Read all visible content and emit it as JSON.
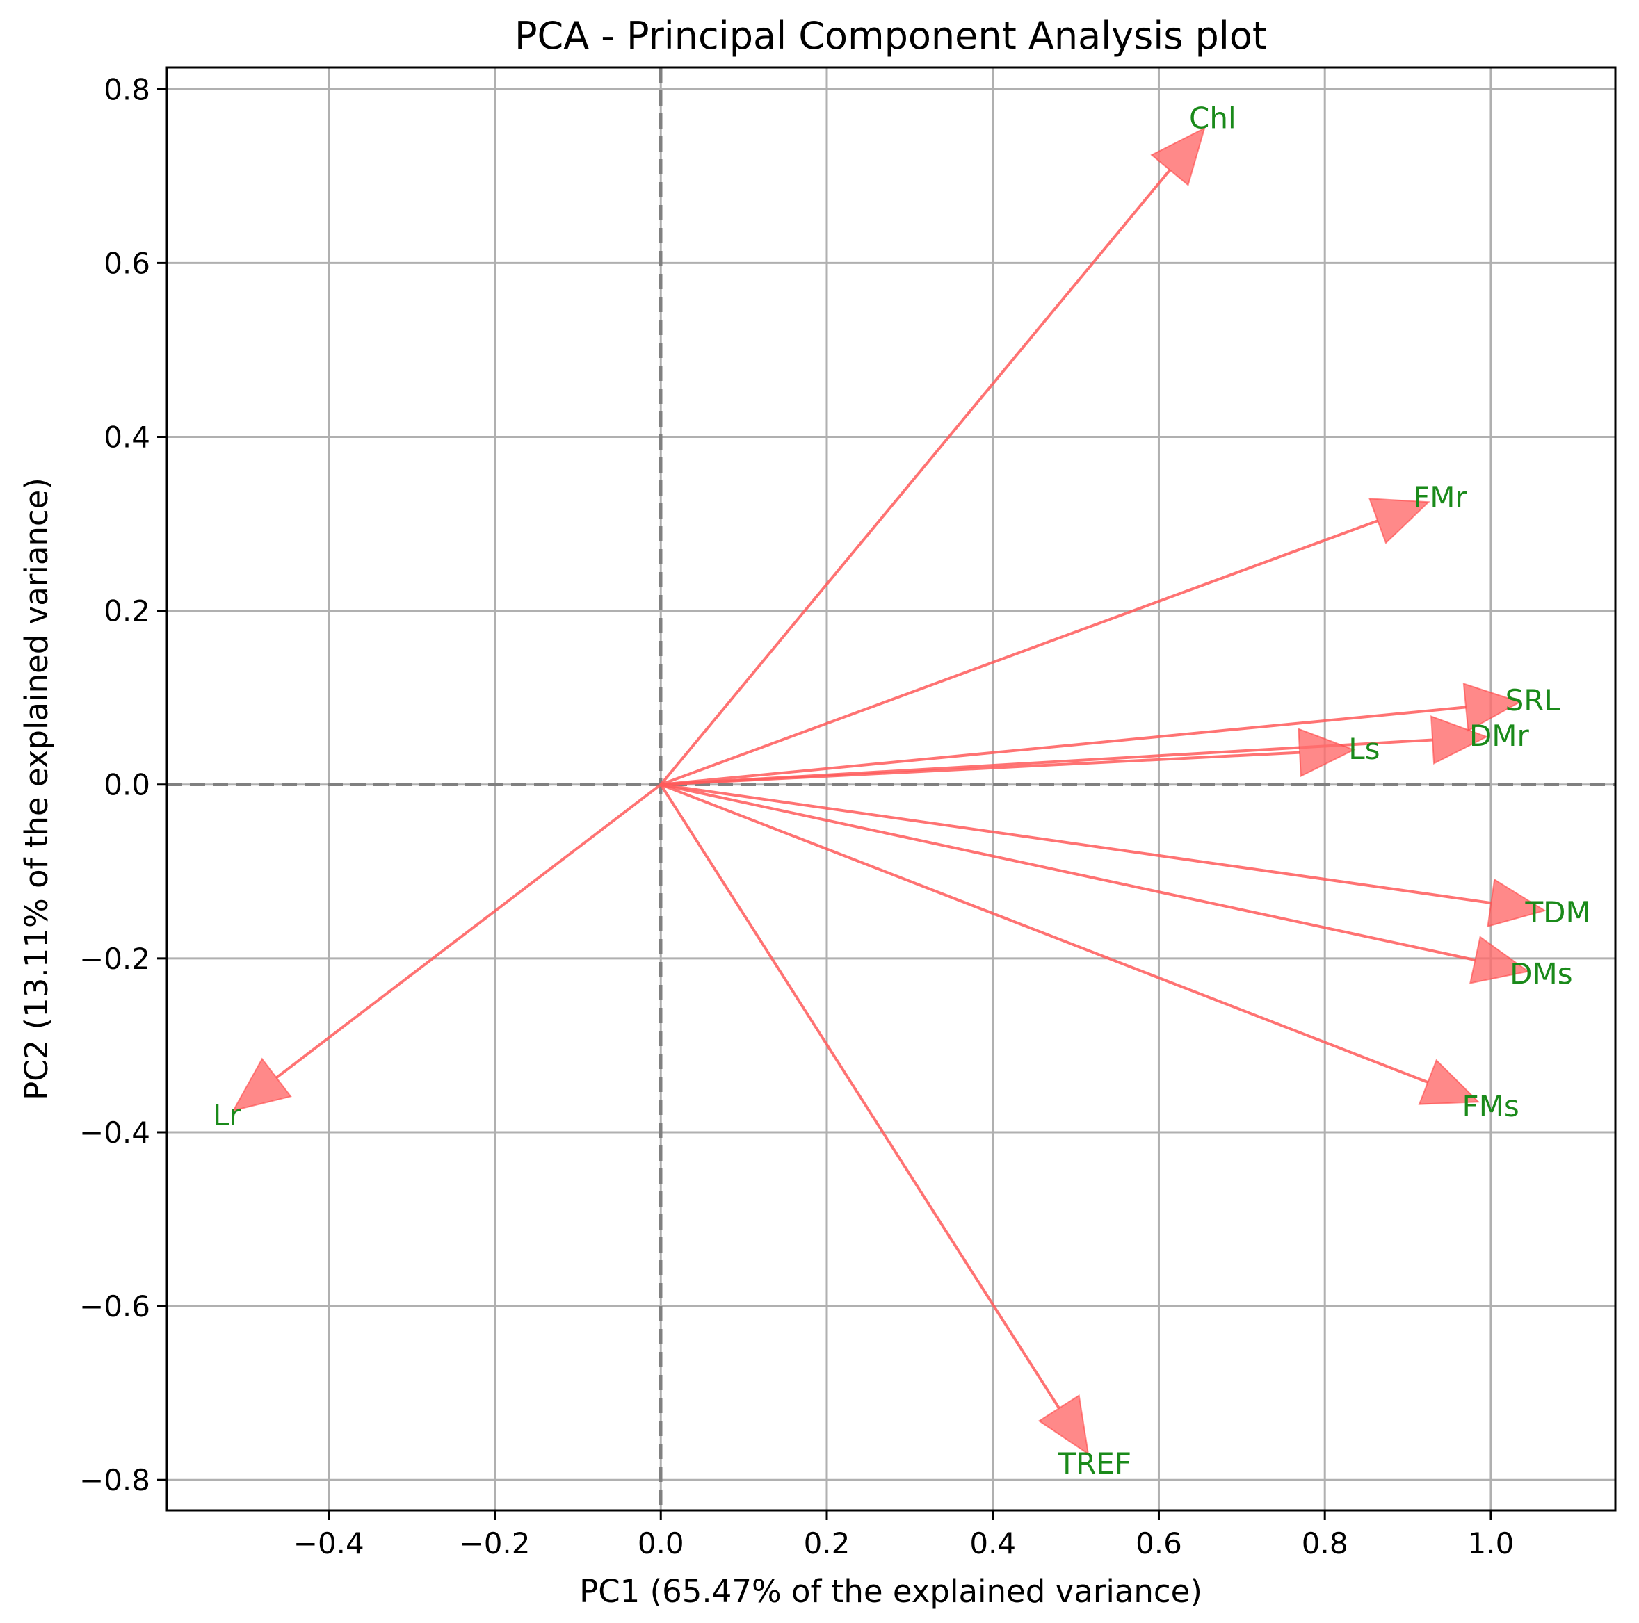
{
  "chart_data": {
    "type": "biplot",
    "title": "PCA - Principal Component Analysis plot",
    "xlabel": "PC1 (65.47% of the explained variance)",
    "ylabel": "PC2 (13.11% of the explained variance)",
    "xlim": [
      -0.595,
      1.15
    ],
    "ylim": [
      -0.835,
      0.825
    ],
    "xticks": [
      -0.4,
      -0.2,
      0.0,
      0.2,
      0.4,
      0.6,
      0.8,
      1.0
    ],
    "xtick_labels": [
      "−0.4",
      "−0.2",
      "0.0",
      "0.2",
      "0.4",
      "0.6",
      "0.8",
      "1.0"
    ],
    "yticks": [
      0.8,
      0.6,
      0.4,
      0.2,
      0.0,
      -0.2,
      -0.4,
      -0.6,
      -0.8
    ],
    "ytick_labels": [
      "0.8",
      "0.6",
      "0.4",
      "0.2",
      "0.0",
      "−0.2",
      "−0.4",
      "−0.6",
      "−0.8"
    ],
    "grid": true,
    "zero_lines": true,
    "arrow_color": "#ff6b6b",
    "label_color": "#1a8a1a",
    "loadings": [
      {
        "name": "Chl",
        "x": 0.655,
        "y": 0.755
      },
      {
        "name": "FMr",
        "x": 0.925,
        "y": 0.325
      },
      {
        "name": "SRL",
        "x": 1.035,
        "y": 0.095
      },
      {
        "name": "DMr",
        "x": 0.995,
        "y": 0.055
      },
      {
        "name": "Ls",
        "x": 0.835,
        "y": 0.04
      },
      {
        "name": "TDM",
        "x": 1.065,
        "y": -0.145
      },
      {
        "name": "DMs",
        "x": 1.045,
        "y": -0.215
      },
      {
        "name": "FMs",
        "x": 0.985,
        "y": -0.365
      },
      {
        "name": "TREF",
        "x": 0.515,
        "y": -0.77
      },
      {
        "name": "Lr",
        "x": -0.515,
        "y": -0.375
      }
    ]
  }
}
